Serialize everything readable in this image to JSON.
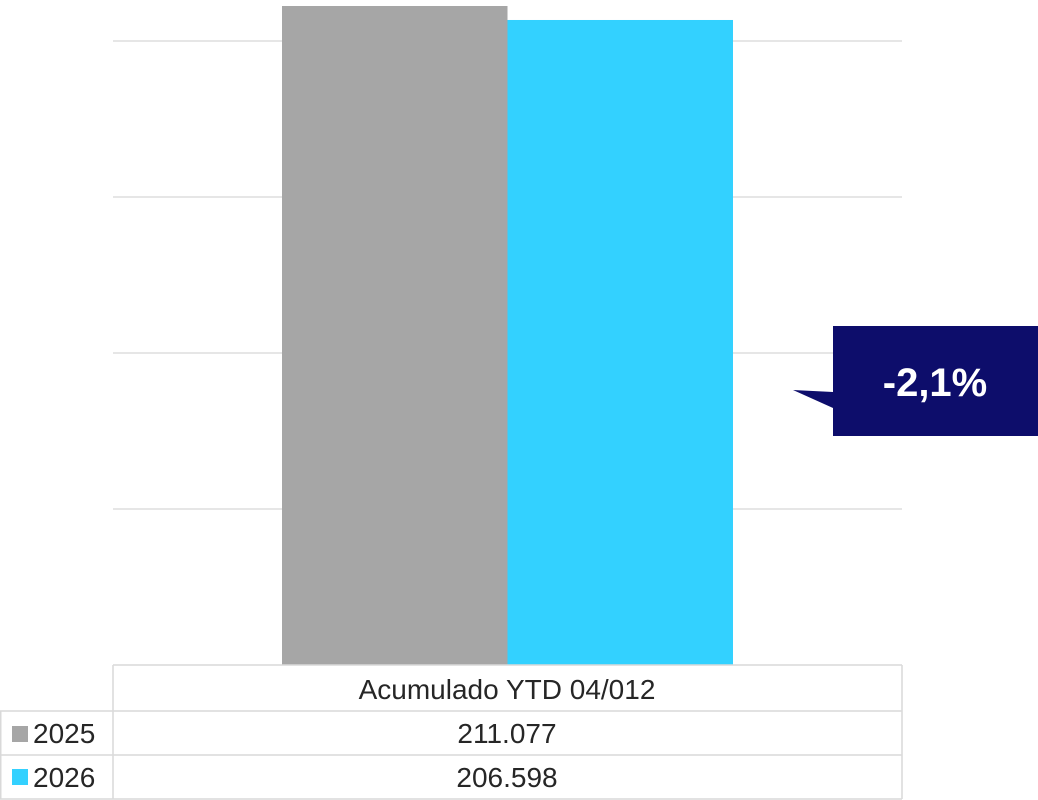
{
  "chart_data": {
    "type": "bar",
    "categories": [
      "Acumulado YTD 04/012"
    ],
    "series": [
      {
        "name": "2025",
        "values": [
          211077
        ],
        "value_labels": [
          "211.077"
        ],
        "color": "#a6a6a6"
      },
      {
        "name": "2026",
        "values": [
          206598
        ],
        "value_labels": [
          "206.598"
        ],
        "color": "#33d1ff"
      }
    ],
    "ylim": [
      0,
      211077
    ],
    "grid": true,
    "legend": "data-table-left",
    "annotations": [
      {
        "text": "-2,1%",
        "background": "#0d0d6b",
        "color": "#ffffff"
      }
    ]
  }
}
